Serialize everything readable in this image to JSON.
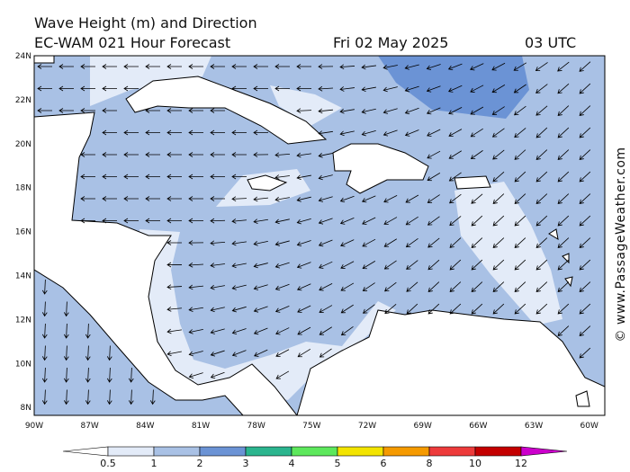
{
  "header": {
    "title": "Wave Height (m) and Direction",
    "model": "EC-WAM 021 Hour Forecast",
    "date": "Fri 02 May 2025",
    "time": "03 UTC"
  },
  "map": {
    "lat_labels": [
      "24N",
      "22N",
      "20N",
      "18N",
      "16N",
      "14N",
      "12N",
      "10N",
      "8N"
    ],
    "lon_labels": [
      "90W",
      "87W",
      "84W",
      "81W",
      "78W",
      "75W",
      "72W",
      "69W",
      "66W",
      "63W",
      "60W"
    ]
  },
  "legend": {
    "ticks": [
      0.5,
      1,
      2,
      3,
      4,
      5,
      6,
      8,
      10,
      12
    ],
    "colors": [
      "#ffffff",
      "#e3ebf8",
      "#a9c1e5",
      "#6b93d5",
      "#2bb58e",
      "#5de85c",
      "#f3e400",
      "#f59a00",
      "#ed3b3b",
      "#c40000",
      "#cc00cc"
    ]
  },
  "watermark": "© www.PassageWeather.com"
}
